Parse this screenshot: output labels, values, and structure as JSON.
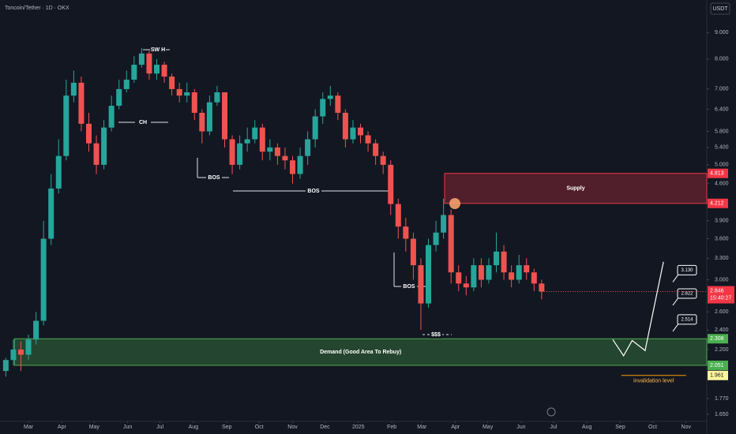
{
  "chart_data": {
    "type": "candlestick",
    "title": "Toncoin/Tether · 1D · OKX",
    "currency": "USDT",
    "log_scale": true,
    "x": [
      -21,
      -14,
      -7,
      0,
      7,
      14,
      21,
      28,
      35,
      42,
      49,
      56,
      63,
      70,
      77,
      84,
      91,
      98,
      105,
      112,
      119,
      126,
      133,
      140,
      147,
      154,
      161,
      168,
      175,
      182,
      189,
      196,
      203,
      210,
      217,
      224,
      231,
      238,
      245,
      252,
      259,
      266,
      273,
      280,
      287,
      294,
      301,
      308,
      315,
      322,
      329,
      336,
      343,
      350,
      357,
      364,
      371,
      378,
      385,
      392,
      399,
      406,
      413,
      420,
      427,
      434,
      441,
      448,
      455,
      462,
      469,
      476
    ],
    "open": [
      2.0,
      2.1,
      2.2,
      2.15,
      2.3,
      2.5,
      3.6,
      4.5,
      5.2,
      6.8,
      7.2,
      6.0,
      5.5,
      5.0,
      5.9,
      6.5,
      7.0,
      7.3,
      7.8,
      8.2,
      7.5,
      7.8,
      7.4,
      7.0,
      6.8,
      6.9,
      6.3,
      5.8,
      6.6,
      6.9,
      5.6,
      5.0,
      5.5,
      5.6,
      5.9,
      5.3,
      5.4,
      5.2,
      5.1,
      4.8,
      5.2,
      5.6,
      6.2,
      6.7,
      6.8,
      6.3,
      5.6,
      5.9,
      5.7,
      5.5,
      5.2,
      5.0,
      4.2,
      3.8,
      3.6,
      3.2,
      2.7,
      3.5,
      3.7,
      4.0,
      3.1,
      2.95,
      2.9,
      3.2,
      3.0,
      3.2,
      3.4,
      3.1,
      3.0,
      3.2,
      3.1,
      2.95
    ],
    "high": [
      2.12,
      2.3,
      2.28,
      2.35,
      2.6,
      3.9,
      4.8,
      5.6,
      7.3,
      7.6,
      7.4,
      6.3,
      5.7,
      6.1,
      6.8,
      7.3,
      7.6,
      8.1,
      8.4,
      8.3,
      8.0,
      7.9,
      7.5,
      7.2,
      7.2,
      7.0,
      6.4,
      6.8,
      7.1,
      6.9,
      5.7,
      5.7,
      5.9,
      6.1,
      6.0,
      5.6,
      5.5,
      5.4,
      5.2,
      5.4,
      5.8,
      6.4,
      6.9,
      7.1,
      6.9,
      6.4,
      6.1,
      6.0,
      5.8,
      5.6,
      5.3,
      5.1,
      4.3,
      3.95,
      3.7,
      3.3,
      3.6,
      3.9,
      4.3,
      4.1,
      3.2,
      3.05,
      3.3,
      3.3,
      3.3,
      3.7,
      3.5,
      3.2,
      3.35,
      3.3,
      3.15,
      3.0
    ],
    "low": [
      1.95,
      2.05,
      2.0,
      2.1,
      2.25,
      2.45,
      3.5,
      4.4,
      5.1,
      6.6,
      5.8,
      5.3,
      4.8,
      4.9,
      5.8,
      6.4,
      6.9,
      7.2,
      7.7,
      7.3,
      7.3,
      7.2,
      6.8,
      6.6,
      6.6,
      6.1,
      5.5,
      5.7,
      6.5,
      5.4,
      4.8,
      4.9,
      5.3,
      5.5,
      5.1,
      5.1,
      5.0,
      4.9,
      4.6,
      4.7,
      5.0,
      5.4,
      6.0,
      6.5,
      6.1,
      5.4,
      5.5,
      5.5,
      5.3,
      5.0,
      4.8,
      4.0,
      3.6,
      3.4,
      3.0,
      2.4,
      2.65,
      3.4,
      3.6,
      2.95,
      2.85,
      2.8,
      2.85,
      2.9,
      2.95,
      3.1,
      3.0,
      2.9,
      2.95,
      3.0,
      2.85,
      2.75
    ],
    "close": [
      2.1,
      2.2,
      2.15,
      2.3,
      2.5,
      3.6,
      4.5,
      5.2,
      6.8,
      7.2,
      6.0,
      5.5,
      5.0,
      5.9,
      6.5,
      7.0,
      7.3,
      7.8,
      8.2,
      7.5,
      7.8,
      7.4,
      7.0,
      6.8,
      6.9,
      6.3,
      5.8,
      6.6,
      6.9,
      5.6,
      5.0,
      5.5,
      5.6,
      5.9,
      5.3,
      5.4,
      5.2,
      5.1,
      4.8,
      5.2,
      5.6,
      6.2,
      6.7,
      6.8,
      6.3,
      5.6,
      5.9,
      5.7,
      5.5,
      5.2,
      5.0,
      4.2,
      3.8,
      3.6,
      3.2,
      2.7,
      3.5,
      3.7,
      4.0,
      3.1,
      2.95,
      2.9,
      3.2,
      3.0,
      3.2,
      3.4,
      3.1,
      3.0,
      3.2,
      3.1,
      2.95,
      2.846
    ],
    "up_color": "#26a69a",
    "down_color": "#ef5350",
    "xlim": [
      -26.4,
      629.2
    ],
    "xticks": [
      {
        "value": 0,
        "label": "Mar"
      },
      {
        "value": 31,
        "label": "Apr"
      },
      {
        "value": 61,
        "label": "May"
      },
      {
        "value": 92,
        "label": "Jun"
      },
      {
        "value": 122,
        "label": "Jul"
      },
      {
        "value": 153,
        "label": "Aug"
      },
      {
        "value": 184,
        "label": "Sep"
      },
      {
        "value": 214,
        "label": "Oct"
      },
      {
        "value": 245,
        "label": "Nov"
      },
      {
        "value": 275,
        "label": "Dec"
      },
      {
        "value": 306,
        "label": "2025"
      },
      {
        "value": 337,
        "label": "Feb"
      },
      {
        "value": 365,
        "label": "Mar"
      },
      {
        "value": 396,
        "label": "Apr"
      },
      {
        "value": 426,
        "label": "May"
      },
      {
        "value": 457,
        "label": "Jun"
      },
      {
        "value": 487,
        "label": "Jul"
      },
      {
        "value": 518,
        "label": "Aug"
      },
      {
        "value": 549,
        "label": "Sep"
      },
      {
        "value": 579,
        "label": "Oct"
      },
      {
        "value": 610,
        "label": "Nov"
      }
    ],
    "ylim": [
      1.61,
      10.4
    ],
    "yticks": [
      {
        "value": 9,
        "label": "9.000"
      },
      {
        "value": 8,
        "label": "8.000"
      },
      {
        "value": 7,
        "label": "7.000"
      },
      {
        "value": 6.4,
        "label": "6.400"
      },
      {
        "value": 5.8,
        "label": "5.800"
      },
      {
        "value": 5.4,
        "label": "5.400"
      },
      {
        "value": 5,
        "label": "5.000"
      },
      {
        "value": 4.6,
        "label": "4.600"
      },
      {
        "value": 3.9,
        "label": "3.900"
      },
      {
        "value": 3.6,
        "label": "3.600"
      },
      {
        "value": 3.3,
        "label": "3.300"
      },
      {
        "value": 3,
        "label": "3.000"
      },
      {
        "value": 2.6,
        "label": "2.600"
      },
      {
        "value": 2.4,
        "label": "2.400"
      },
      {
        "value": 2.2,
        "label": "2.200"
      },
      {
        "value": 1.77,
        "label": "1.770"
      },
      {
        "value": 1.65,
        "label": "1.650"
      }
    ],
    "supply": {
      "label": "Supply",
      "range": [
        4.212,
        4.813
      ],
      "start": 386
    },
    "demand": {
      "label": "Demand (Good Area To Rebuy)",
      "range": [
        2.051,
        2.308
      ],
      "start": -13
    },
    "invalidation": {
      "label": "invalidation level",
      "value": 1.961,
      "range": [
        550,
        610
      ]
    },
    "last_price": 2.846,
    "countdown": "15:40:27",
    "projection": {
      "x": [
        542,
        552,
        560,
        572,
        589
      ],
      "values": [
        2.3,
        2.14,
        2.29,
        2.19,
        3.25
      ]
    },
    "targets": [
      {
        "value": 3.13,
        "label": "3.130"
      },
      {
        "value": 2.822,
        "label": "2.822"
      },
      {
        "value": 2.514,
        "label": "2.514"
      }
    ],
    "annotations": {
      "swing_high": "SW H",
      "change": "CH",
      "bos": [
        "BOS",
        "BOS",
        "BOS"
      ],
      "liquidity": "$$$"
    }
  }
}
